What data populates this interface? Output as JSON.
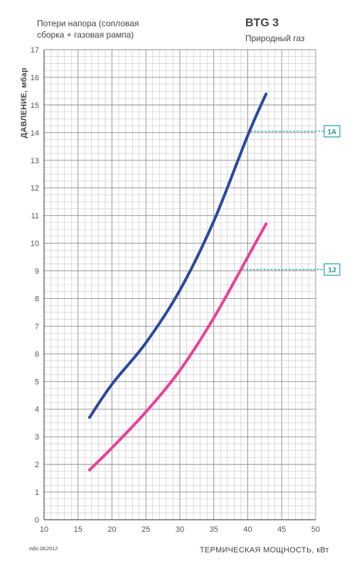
{
  "header": {
    "note_line1": "Потери напора (сопловая",
    "note_line2": "сборка + газовая рампа)",
    "model": "BTG 3",
    "fuel": "Природный газ",
    "edition": "ediz.06/2012"
  },
  "chart_data": {
    "type": "line",
    "xlabel": "ТЕРМИЧЕСКАЯ МОЩНОСТЬ, кВт",
    "ylabel": "ДАВЛЕНИЕ, мбар",
    "xlim": [
      10,
      50
    ],
    "ylim": [
      0,
      17
    ],
    "x_ticks": [
      "10",
      "15",
      "20",
      "25",
      "30",
      "35",
      "40",
      "45",
      "50"
    ],
    "y_ticks": [
      "0",
      "1",
      "2",
      "3",
      "4",
      "5",
      "6",
      "7",
      "8",
      "9",
      "10",
      "11",
      "12",
      "13",
      "14",
      "15",
      "16",
      "17"
    ],
    "grid": true,
    "series": [
      {
        "color": "#2b4a9c",
        "x": [
          16.7,
          20,
          25,
          30,
          35,
          40,
          42.7
        ],
        "y": [
          3.7,
          4.9,
          6.4,
          8.3,
          10.8,
          13.9,
          15.4
        ]
      },
      {
        "color": "#e8409a",
        "x": [
          16.7,
          20,
          25,
          30,
          35,
          40,
          42.7
        ],
        "y": [
          1.8,
          2.6,
          3.9,
          5.4,
          7.3,
          9.5,
          10.7
        ]
      }
    ],
    "annotations": [
      {
        "label": "1A",
        "y": 14.05,
        "x_from": 40.4,
        "color": "#2fa9a7"
      },
      {
        "label": "1J",
        "y": 9.05,
        "x_from": 39.2,
        "color": "#2fa9a7"
      }
    ]
  }
}
